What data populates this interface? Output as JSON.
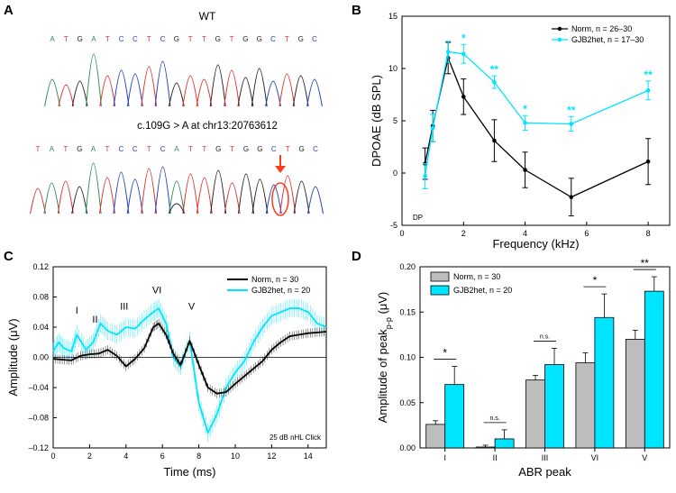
{
  "colors": {
    "cyan": "#00e5ff",
    "black": "#000000",
    "gray": "#bdbdbd",
    "red": "#ff3b1f",
    "baseA": "#2e8b57",
    "baseC": "#1f3fbf",
    "baseG": "#222222",
    "baseT": "#e0302a"
  },
  "panels": {
    "a": {
      "letter": "A",
      "wt_label": "WT",
      "mut_label": "c.109G > A at chr13:20763612",
      "wt_seq": [
        "A",
        "T",
        "G",
        "A",
        "T",
        "C",
        "C",
        "T",
        "C",
        "G",
        "T",
        "T",
        "G",
        "T",
        "G",
        "G",
        "C",
        "T",
        "G",
        "C"
      ],
      "mut_seq": [
        "T",
        "A",
        "T",
        "G",
        "A",
        "T",
        "C",
        "C",
        "T",
        "C",
        "A",
        "T",
        "T",
        "G",
        "T",
        "G",
        "G",
        "C",
        "T",
        "G",
        "C"
      ]
    },
    "b": {
      "letter": "B"
    },
    "c": {
      "letter": "C"
    },
    "d": {
      "letter": "D"
    }
  },
  "chart_data": [
    {
      "id": "B",
      "type": "line",
      "title": "",
      "xlabel": "Frequency (kHz)",
      "ylabel": "DPOAE (dB SPL)",
      "xlim": [
        0,
        8.7
      ],
      "ylim": [
        -5,
        15
      ],
      "xticks": [
        0,
        2,
        4,
        6,
        8
      ],
      "yticks": [
        -5,
        0,
        5,
        10,
        15
      ],
      "annotation": "DP",
      "series": [
        {
          "name": "Norm",
          "n_label": "n = 26–30",
          "color": "#000000",
          "x": [
            0.75,
            1,
            1.5,
            2,
            3,
            4,
            5.5,
            8
          ],
          "y": [
            0.9,
            4.5,
            11.0,
            7.3,
            3.1,
            0.3,
            -2.3,
            1.1
          ],
          "err": [
            1.5,
            1.5,
            1.5,
            1.7,
            2.0,
            1.7,
            1.8,
            2.2
          ]
        },
        {
          "name": "GJB2het",
          "n_label": "n = 17–30",
          "color": "#00e5ff",
          "x": [
            0.75,
            1,
            1.5,
            2,
            3,
            4,
            5.5,
            8
          ],
          "y": [
            -0.3,
            4.3,
            11.6,
            11.4,
            8.7,
            4.8,
            4.7,
            7.9
          ],
          "err": [
            1.2,
            1.3,
            1.0,
            0.9,
            0.6,
            0.7,
            0.7,
            0.9
          ]
        }
      ],
      "significance": [
        {
          "x": 2,
          "label": "*"
        },
        {
          "x": 3,
          "label": "**"
        },
        {
          "x": 4,
          "label": "*"
        },
        {
          "x": 5.5,
          "label": "**"
        },
        {
          "x": 8,
          "label": "**"
        }
      ]
    },
    {
      "id": "C",
      "type": "line",
      "title": "",
      "xlabel": "Time (ms)",
      "ylabel": "Amplitude (μV)",
      "xlim": [
        0,
        15
      ],
      "ylim": [
        -0.12,
        0.12
      ],
      "xticks": [
        0,
        2,
        4,
        6,
        8,
        10,
        12,
        14
      ],
      "yticks": [
        -0.12,
        -0.08,
        -0.04,
        0.0,
        0.04,
        0.08,
        0.12
      ],
      "ytick_labels": [
        "–0.12",
        "–0.08",
        "–0.04",
        "0.00",
        "0.04",
        "0.08",
        "0.12"
      ],
      "annotation": "25 dB nHL Click",
      "peak_labels": [
        {
          "label": "I",
          "x": 1.3,
          "y": 0.058
        },
        {
          "label": "II",
          "x": 2.3,
          "y": 0.046
        },
        {
          "label": "III",
          "x": 3.9,
          "y": 0.063
        },
        {
          "label": "VI",
          "x": 5.7,
          "y": 0.085
        },
        {
          "label": "V",
          "x": 7.6,
          "y": 0.063
        }
      ],
      "series": [
        {
          "name": "Norm",
          "n_label": "n = 30",
          "color": "#000000",
          "err": 0.006,
          "x": [
            0,
            0.5,
            1,
            1.5,
            2,
            2.5,
            3,
            3.5,
            4,
            4.5,
            5,
            5.5,
            5.8,
            6.2,
            6.6,
            7,
            7.5,
            8,
            8.5,
            9,
            9.5,
            10,
            10.5,
            11,
            11.5,
            12,
            12.5,
            13,
            13.5,
            14,
            14.5,
            15
          ],
          "y": [
            -0.002,
            -0.003,
            -0.004,
            0.002,
            0.004,
            0.005,
            0.01,
            0.002,
            -0.012,
            -0.002,
            0.012,
            0.04,
            0.045,
            0.03,
            0.005,
            -0.01,
            0.022,
            -0.01,
            -0.04,
            -0.048,
            -0.046,
            -0.035,
            -0.025,
            -0.015,
            -0.005,
            0.01,
            0.02,
            0.028,
            0.03,
            0.032,
            0.033,
            0.034
          ]
        },
        {
          "name": "GJB2het",
          "n_label": "n = 20",
          "color": "#00e5ff",
          "err": 0.012,
          "x": [
            0,
            0.3,
            0.6,
            1,
            1.3,
            1.8,
            2.2,
            2.6,
            3,
            3.5,
            4,
            4.5,
            5,
            5.5,
            5.8,
            6.2,
            6.6,
            7,
            7.5,
            8,
            8.5,
            9,
            9.5,
            10,
            10.5,
            11,
            11.5,
            12,
            12.5,
            13,
            13.5,
            14,
            14.5,
            15
          ],
          "y": [
            0.008,
            0.02,
            0.012,
            0.008,
            0.03,
            0.01,
            0.02,
            0.045,
            0.035,
            0.03,
            0.04,
            0.038,
            0.05,
            0.06,
            0.065,
            0.045,
            0.0,
            -0.012,
            0.022,
            -0.06,
            -0.1,
            -0.075,
            -0.04,
            -0.02,
            -0.005,
            0.02,
            0.04,
            0.055,
            0.06,
            0.065,
            0.065,
            0.06,
            0.045,
            0.04
          ]
        }
      ]
    },
    {
      "id": "D",
      "type": "bar",
      "title": "",
      "xlabel": "ABR peak",
      "ylabel": "Amplitude of peak",
      "ylabel_sub": "p-p",
      "ylabel_unit": "(μV)",
      "categories": [
        "I",
        "II",
        "III",
        "VI",
        "V"
      ],
      "ylim": [
        0,
        0.2
      ],
      "yticks": [
        0.0,
        0.05,
        0.1,
        0.15,
        0.2
      ],
      "ytick_labels": [
        "0.00",
        "0.05",
        "0.10",
        "0.15",
        "0.20"
      ],
      "series": [
        {
          "name": "Norm",
          "n_label": "n = 30",
          "color": "#bdbdbd",
          "values": [
            0.026,
            0.001,
            0.075,
            0.094,
            0.12
          ],
          "err": [
            0.004,
            0.002,
            0.005,
            0.011,
            0.01
          ]
        },
        {
          "name": "GJB2het",
          "n_label": "n = 20",
          "color": "#00e5ff",
          "values": [
            0.07,
            0.01,
            0.092,
            0.144,
            0.173
          ],
          "err": [
            0.02,
            0.01,
            0.018,
            0.026,
            0.016
          ]
        }
      ],
      "significance": [
        "*",
        "n.s.",
        "n.s.",
        "*",
        "**"
      ]
    }
  ]
}
